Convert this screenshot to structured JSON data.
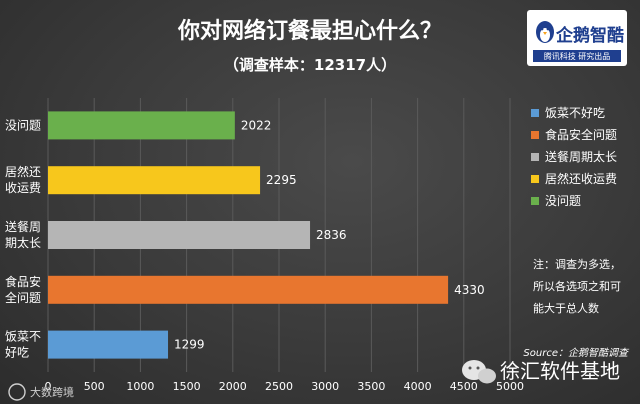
{
  "header": {
    "title": "你对网络订餐最担心什么？",
    "subtitle": "（调查样本：12317人）"
  },
  "logo": {
    "name": "企鹅智酷",
    "tagline": "腾讯科技  研究出品"
  },
  "note": {
    "lines": [
      "注：调查为多选，",
      "所以各选项之和可",
      "能大于总人数"
    ]
  },
  "source": "Source：企鹅智酷调查",
  "watermarks": {
    "wechat": "徐汇软件基地",
    "corner": "大数跨境"
  },
  "colors": {
    "green": "#6ab04c",
    "yellow": "#f7c71c",
    "gray": "#b5b5b5",
    "orange": "#e8762f",
    "blue": "#5b9bd5"
  },
  "chart_data": {
    "type": "bar",
    "orientation": "horizontal",
    "title": "你对网络订餐最担心什么？",
    "subtitle": "（调查样本：12317人）",
    "categories": [
      {
        "lines": [
          "没问题"
        ],
        "value": 2022,
        "color": "#6ab04c"
      },
      {
        "lines": [
          "居然还",
          "收运费"
        ],
        "value": 2295,
        "color": "#f7c71c"
      },
      {
        "lines": [
          "送餐周",
          "期太长"
        ],
        "value": 2836,
        "color": "#b5b5b5"
      },
      {
        "lines": [
          "食品安",
          "全问题"
        ],
        "value": 4330,
        "color": "#e8762f"
      },
      {
        "lines": [
          "饭菜不",
          "好吃"
        ],
        "value": 1299,
        "color": "#5b9bd5"
      }
    ],
    "xlim": [
      0,
      5000
    ],
    "xticks": [
      "0",
      "500",
      "1000",
      "1500",
      "2000",
      "2500",
      "3000",
      "3500",
      "4000",
      "4500",
      "5000"
    ],
    "legend": {
      "position": "right",
      "entries": [
        {
          "label": "饭菜不好吃",
          "color": "#5b9bd5"
        },
        {
          "label": "食品安全问题",
          "color": "#e8762f"
        },
        {
          "label": "送餐周期太长",
          "color": "#b5b5b5"
        },
        {
          "label": "居然还收运费",
          "color": "#f7c71c"
        },
        {
          "label": "没问题",
          "color": "#6ab04c"
        }
      ]
    }
  }
}
